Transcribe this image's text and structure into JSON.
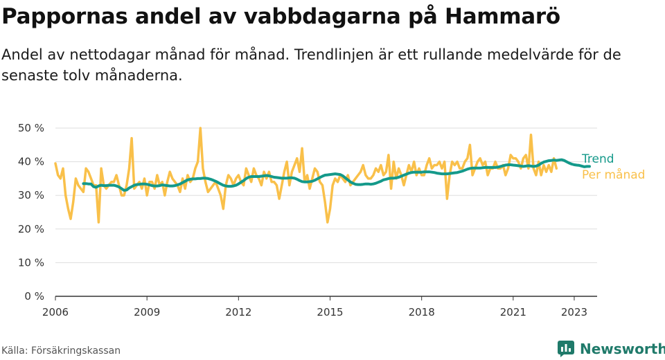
{
  "title": "Pappornas andel av vabbdagarna på Hammarö",
  "subtitle": "Andel av nettodagar månad för månad. Trendlinjen är ett rullande medelvärde för de senaste tolv månaderna.",
  "source": "Källa: Försäkringskassan",
  "brand": {
    "name": "Newsworthy",
    "icon": "newsworthy-logo-icon"
  },
  "colors": {
    "monthly": "#f9c04a",
    "trend": "#14998a",
    "grid": "#dddddd",
    "axis": "#333333",
    "brand": "#1f7a6a"
  },
  "chart_data": {
    "type": "line",
    "title": "Pappornas andel av vabbdagarna på Hammarö",
    "xlabel": "",
    "ylabel": "",
    "ylim": [
      0,
      50
    ],
    "yticks": [
      0,
      10,
      20,
      30,
      40,
      50
    ],
    "ytick_labels": [
      "0 %",
      "10 %",
      "20 %",
      "30 %",
      "40 %",
      "50 %"
    ],
    "xlim": [
      2006,
      2023.75
    ],
    "xticks": [
      2006,
      2009,
      2012,
      2015,
      2018,
      2021,
      2023
    ],
    "xtick_labels": [
      "2006",
      "2009",
      "2012",
      "2015",
      "2018",
      "2021",
      "2023"
    ],
    "grid": true,
    "legend": "right, at line ends",
    "series": [
      {
        "name": "Per månad",
        "x_start": 2006.0,
        "x_step_months": 1,
        "values": [
          39.5,
          36,
          35,
          38,
          30,
          26,
          23,
          28,
          35,
          33,
          32,
          31,
          38,
          37,
          35,
          33,
          33,
          22,
          38,
          33,
          32,
          33,
          34,
          34,
          36,
          33,
          30,
          30,
          33,
          38,
          47,
          32,
          33,
          34,
          32,
          35,
          30,
          34,
          34,
          32,
          36,
          33,
          34,
          30,
          34,
          37,
          35,
          34,
          33,
          31,
          35,
          32,
          36,
          34,
          35,
          38,
          40,
          50,
          38,
          34,
          31,
          32,
          33,
          34,
          32,
          30,
          26,
          33,
          36,
          35,
          33,
          35,
          36,
          34,
          33,
          38,
          36,
          34,
          38,
          36,
          35,
          33,
          37,
          35,
          37,
          34,
          34,
          33,
          29,
          33,
          37,
          40,
          33,
          37,
          39,
          41,
          37,
          44,
          34,
          36,
          32,
          35,
          38,
          37,
          34,
          33,
          28,
          22,
          26,
          33,
          35,
          34,
          36,
          35,
          34,
          36,
          33,
          34,
          35,
          36,
          37,
          39,
          36,
          35,
          35,
          36,
          38,
          37,
          39,
          36,
          37,
          42,
          32,
          40,
          35,
          38,
          36,
          33,
          36,
          39,
          37,
          40,
          36,
          38,
          36,
          36,
          39,
          41,
          38,
          39,
          39,
          40,
          38,
          40,
          29,
          36,
          40,
          39,
          40,
          38,
          38,
          40,
          41,
          45,
          36,
          38,
          40,
          41,
          39,
          40,
          36,
          38,
          38,
          40,
          38,
          38,
          39,
          36,
          38,
          42,
          41,
          41,
          40,
          38,
          41,
          42,
          38,
          48,
          38,
          36,
          40,
          36,
          39,
          37,
          39,
          37,
          41,
          38
        ]
      },
      {
        "name": "Trend",
        "x_start": 2006.9167,
        "x_step_months": 1,
        "values": [
          33.5,
          33.5,
          33.4,
          33.4,
          32.6,
          32.4,
          32.8,
          33.0,
          32.9,
          32.9,
          33.0,
          33.0,
          33.0,
          32.8,
          32.5,
          32.0,
          31.5,
          31.6,
          32.2,
          32.6,
          33.0,
          33.2,
          33.3,
          33.4,
          33.4,
          33.3,
          33.1,
          32.9,
          32.8,
          32.8,
          32.9,
          33.1,
          33.0,
          32.9,
          32.8,
          32.8,
          32.9,
          33.1,
          33.4,
          33.8,
          34.2,
          34.6,
          34.8,
          34.9,
          34.9,
          35.0,
          35.0,
          35.1,
          35.1,
          35.0,
          34.8,
          34.5,
          34.2,
          33.8,
          33.4,
          33.0,
          32.8,
          32.7,
          32.7,
          32.8,
          33.0,
          33.4,
          33.9,
          34.4,
          35.0,
          35.4,
          35.6,
          35.6,
          35.6,
          35.6,
          35.7,
          35.8,
          35.9,
          35.8,
          35.6,
          35.4,
          35.3,
          35.2,
          35.1,
          35.1,
          35.1,
          35.2,
          35.2,
          35.1,
          34.8,
          34.4,
          34.1,
          34.0,
          34.0,
          34.1,
          34.2,
          34.5,
          34.9,
          35.3,
          35.7,
          36.0,
          36.1,
          36.2,
          36.3,
          36.4,
          36.3,
          36.2,
          35.8,
          35.2,
          34.6,
          34.0,
          33.6,
          33.3,
          33.2,
          33.2,
          33.3,
          33.4,
          33.4,
          33.3,
          33.4,
          33.6,
          33.9,
          34.2,
          34.6,
          34.8,
          35.0,
          35.1,
          35.1,
          35.2,
          35.4,
          35.7,
          36.0,
          36.3,
          36.6,
          36.8,
          36.9,
          36.9,
          36.9,
          36.9,
          37.0,
          37.0,
          37.0,
          36.9,
          36.8,
          36.6,
          36.5,
          36.4,
          36.4,
          36.4,
          36.5,
          36.6,
          36.7,
          36.8,
          37.0,
          37.2,
          37.5,
          37.8,
          38.0,
          38.1,
          38.1,
          38.1,
          38.1,
          38.2,
          38.3,
          38.3,
          38.3,
          38.3,
          38.3,
          38.4,
          38.6,
          38.8,
          39.0,
          39.1,
          39.1,
          39.0,
          38.9,
          38.8,
          38.7,
          38.6,
          38.7,
          38.8,
          38.7,
          38.6,
          38.7,
          39.0,
          39.5,
          39.9,
          40.1,
          40.3,
          40.4,
          40.5,
          40.4,
          40.5,
          40.6,
          40.4,
          40.0,
          39.6,
          39.3,
          39.1,
          39.0,
          38.9,
          38.7,
          38.5,
          38.6,
          38.6
        ]
      }
    ]
  }
}
